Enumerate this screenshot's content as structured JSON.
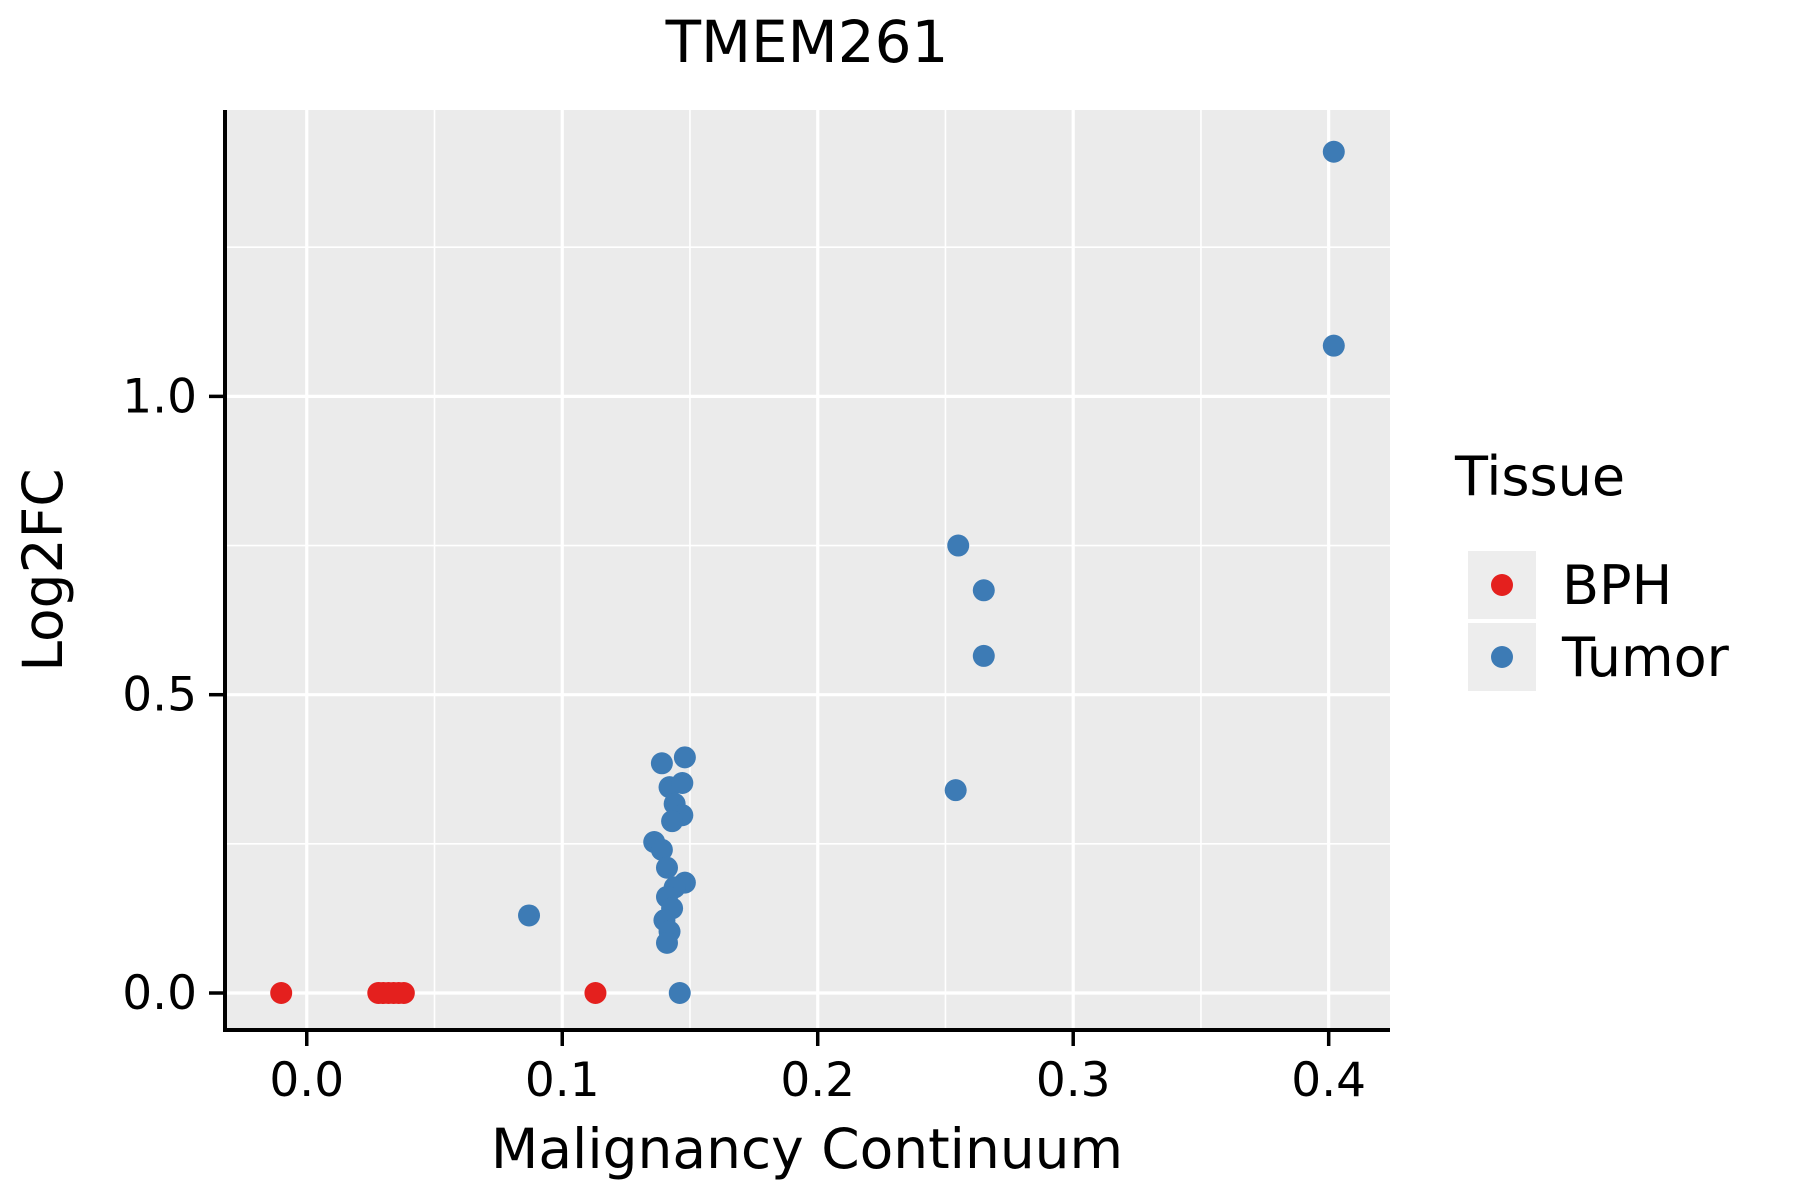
{
  "figure": {
    "title": "TMEM261",
    "xlabel": "Malignancy Continuum",
    "ylabel": "Log2FC"
  },
  "legend": {
    "title": "Tissue",
    "entries": [
      {
        "label": "BPH",
        "color": "#E4201E"
      },
      {
        "label": "Tumor",
        "color": "#3D7BB5"
      }
    ]
  },
  "chart_data": {
    "type": "scatter",
    "title": "TMEM261",
    "xlabel": "Malignancy Continuum",
    "ylabel": "Log2FC",
    "xlim": [
      -0.032,
      0.424
    ],
    "ylim": [
      -0.062,
      1.48
    ],
    "x_major_ticks": [
      0.0,
      0.1,
      0.2,
      0.3,
      0.4
    ],
    "x_minor_ticks": [
      0.05,
      0.15,
      0.25,
      0.35
    ],
    "y_major_ticks": [
      0.0,
      0.5,
      1.0
    ],
    "y_minor_ticks": [
      0.25,
      0.75,
      1.25
    ],
    "grid": true,
    "legend_position": "right",
    "panel_bg": "#EBEBEB",
    "grid_color": "#FFFFFF",
    "legend_key_bg": "#EDEDED",
    "point_radius": 11,
    "series": [
      {
        "name": "BPH",
        "color": "#E4201E",
        "points": [
          [
            -0.01,
            0.0
          ],
          [
            0.028,
            0.0
          ],
          [
            0.03,
            0.0
          ],
          [
            0.032,
            0.0
          ],
          [
            0.034,
            0.0
          ],
          [
            0.036,
            0.0
          ],
          [
            0.038,
            0.0
          ],
          [
            0.113,
            0.0
          ]
        ]
      },
      {
        "name": "Tumor",
        "color": "#3D7BB5",
        "points": [
          [
            0.087,
            0.13
          ],
          [
            0.139,
            0.385
          ],
          [
            0.148,
            0.395
          ],
          [
            0.142,
            0.345
          ],
          [
            0.147,
            0.352
          ],
          [
            0.144,
            0.317
          ],
          [
            0.147,
            0.298
          ],
          [
            0.143,
            0.288
          ],
          [
            0.136,
            0.253
          ],
          [
            0.139,
            0.24
          ],
          [
            0.141,
            0.21
          ],
          [
            0.148,
            0.185
          ],
          [
            0.144,
            0.177
          ],
          [
            0.141,
            0.161
          ],
          [
            0.143,
            0.142
          ],
          [
            0.14,
            0.122
          ],
          [
            0.142,
            0.103
          ],
          [
            0.141,
            0.084
          ],
          [
            0.146,
            0.0
          ],
          [
            0.254,
            0.34
          ],
          [
            0.255,
            0.75
          ],
          [
            0.265,
            0.675
          ],
          [
            0.265,
            0.565
          ],
          [
            0.402,
            1.41
          ],
          [
            0.402,
            1.085
          ]
        ]
      }
    ]
  }
}
